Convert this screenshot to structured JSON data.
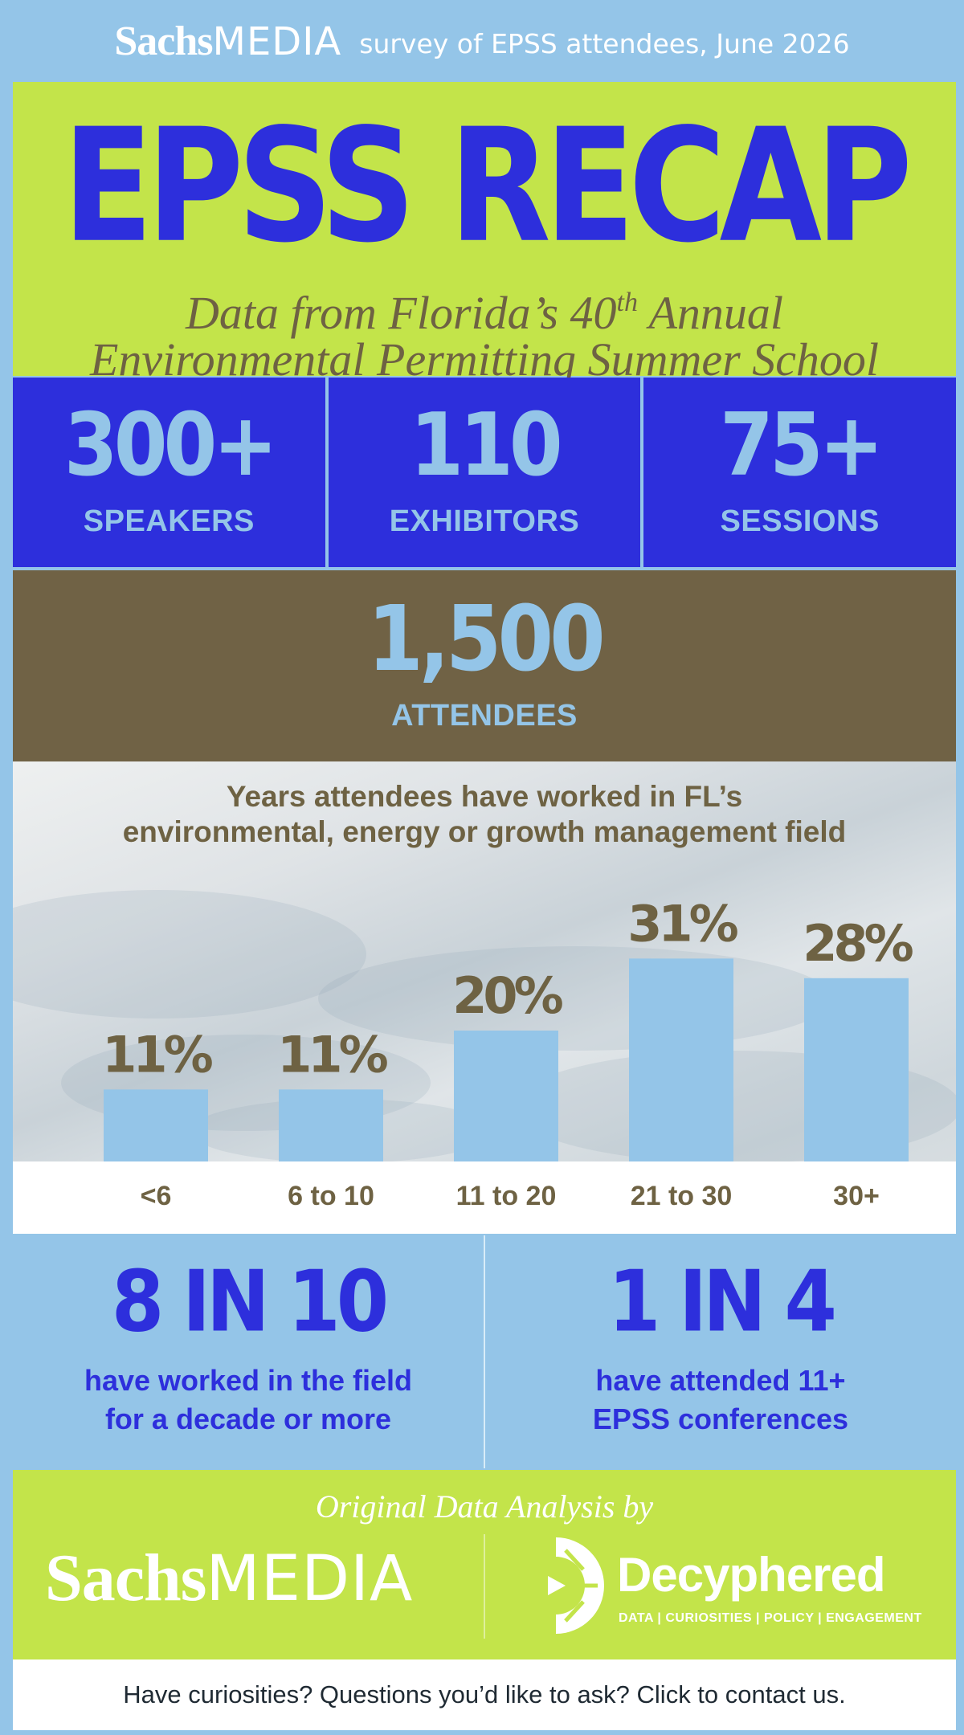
{
  "header": {
    "brand_part1": "Sachs",
    "brand_part2": "MEDIA",
    "survey_note": "survey of EPSS attendees, June 2026"
  },
  "title": {
    "main": "EPSS RECAP",
    "subtitle_line1_pre": "Data from Florida’s 40",
    "subtitle_line1_sup": "th",
    "subtitle_line1_post": " Annual",
    "subtitle_line2": "Environmental Permitting Summer School"
  },
  "stats": [
    {
      "value": "300+",
      "label": "SPEAKERS"
    },
    {
      "value": "110",
      "label": "EXHIBITORS"
    },
    {
      "value": "75+",
      "label": "SESSIONS"
    }
  ],
  "attendees": {
    "value": "1,500",
    "label": "ATTENDEES"
  },
  "chart_data": {
    "type": "bar",
    "title_line1": "Years attendees have worked in FL’s",
    "title_line2": "environmental, energy or growth management field",
    "categories": [
      "<6",
      "6 to 10",
      "11 to 20",
      "21 to 30",
      "30+"
    ],
    "values": [
      11,
      11,
      20,
      31,
      28
    ],
    "value_labels": [
      "11%",
      "11%",
      "20%",
      "31%",
      "28%"
    ],
    "unit": "%",
    "ylim": [
      0,
      45
    ],
    "grid": false,
    "bar_color": "#94c5e8",
    "label_color": "#6e6243"
  },
  "facts": [
    {
      "big": "8 IN 10",
      "line1": "have worked in the field",
      "line2": "for a decade or more"
    },
    {
      "big": "1 IN 4",
      "line1": "have attended 11+",
      "line2": "EPSS conferences"
    }
  ],
  "credit": {
    "by": "Original Data Analysis by",
    "sachs_part1": "Sachs",
    "sachs_part2": "MEDIA",
    "decyphered_name": "Decyphered",
    "decyphered_tagline": "DATA | CURIOSITIES | POLICY | ENGAGEMENT"
  },
  "contact": {
    "text": "Have curiosities? Questions you’d like to ask? Click to contact us."
  },
  "colors": {
    "sky": "#94c5e8",
    "lime": "#c3e44a",
    "royal_blue": "#2d2fdc",
    "brown": "#706245",
    "olive_text": "#6e6243"
  }
}
